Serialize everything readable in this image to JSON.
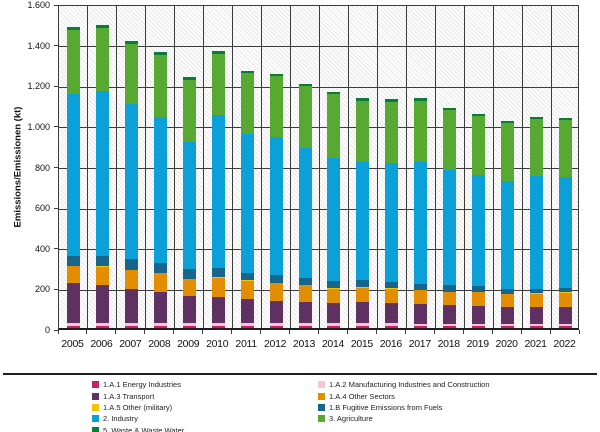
{
  "chart_data": {
    "type": "bar",
    "stacked": true,
    "title": "",
    "ylabel": "Emissions/Emissionen (kt)",
    "xlabel": "",
    "ylim": [
      0,
      1600
    ],
    "ytick_step": 200,
    "ytick_labels": [
      "0",
      "200",
      "400",
      "600",
      "800",
      "1.000",
      "1.200",
      "1.400",
      "1.600"
    ],
    "grid": "horizontal-and-vertical",
    "plot_background": "diagonal-hatch",
    "legend_position": "bottom-two-columns",
    "categories": [
      "2005",
      "2006",
      "2007",
      "2008",
      "2009",
      "2010",
      "2011",
      "2012",
      "2013",
      "2014",
      "2015",
      "2016",
      "2017",
      "2018",
      "2019",
      "2020",
      "2021",
      "2022"
    ],
    "series": [
      {
        "name": "1.A.1 Energy Industries",
        "color": "#c62168",
        "values": [
          10,
          10,
          10,
          10,
          10,
          10,
          10,
          10,
          10,
          10,
          10,
          10,
          9,
          9,
          9,
          9,
          9,
          9
        ]
      },
      {
        "name": "1.A.2 Manufacturing Industries and Construction",
        "color": "#f6c6d7",
        "values": [
          13,
          13,
          13,
          13,
          13,
          13,
          13,
          13,
          13,
          13,
          13,
          13,
          13,
          13,
          13,
          13,
          13,
          13
        ]
      },
      {
        "name": "1.A.3 Transport",
        "color": "#5f3163",
        "values": [
          199,
          189,
          170,
          153,
          137,
          128,
          120,
          112,
          107,
          100,
          104,
          100,
          96,
          92,
          88,
          80,
          80,
          82
        ]
      },
      {
        "name": "1.A.4 Other Sectors",
        "color": "#e28e00",
        "values": [
          82,
          90,
          93,
          94,
          80,
          97,
          89,
          85,
          80,
          71,
          72,
          71,
          69,
          63,
          67,
          64,
          67,
          70
        ]
      },
      {
        "name": "1.A.5 Other (military)",
        "color": "#f5c400",
        "values": [
          2,
          2,
          2,
          2,
          2,
          2,
          2,
          2,
          2,
          2,
          2,
          2,
          2,
          2,
          2,
          2,
          2,
          2
        ]
      },
      {
        "name": "1.B Fugitive Emissions from Fuels",
        "color": "#17658b",
        "values": [
          50,
          52,
          50,
          48,
          47,
          46,
          39,
          37,
          34,
          34,
          34,
          31,
          29,
          31,
          28,
          26,
          23,
          21
        ]
      },
      {
        "name": "2. Industry",
        "color": "#0ba1d8",
        "values": [
          795,
          812,
          763,
          720,
          627,
          752,
          680,
          680,
          640,
          607,
          582,
          587,
          599,
          567,
          544,
          532,
          555,
          546
        ]
      },
      {
        "name": "3. Agriculture",
        "color": "#57a932",
        "values": [
          314,
          307,
          298,
          305,
          306,
          301,
          302,
          300,
          303,
          313,
          303,
          301,
          303,
          295,
          291,
          285,
          281,
          282
        ]
      },
      {
        "name": "5. Waste & Waste Water",
        "color": "#0b7a3e",
        "values": [
          15,
          15,
          14,
          14,
          13,
          13,
          12,
          12,
          12,
          11,
          11,
          11,
          11,
          10,
          10,
          10,
          10,
          10
        ]
      }
    ],
    "totals": [
      1480,
      1490,
      1413,
      1359,
      1235,
      1362,
      1267,
      1251,
      1201,
      1161,
      1131,
      1126,
      1131,
      1082,
      1052,
      1021,
      1040,
      1035
    ],
    "legend_columns": [
      [
        0,
        2,
        4,
        6,
        8
      ],
      [
        1,
        3,
        5,
        7
      ]
    ]
  },
  "style_colors": {
    "gridline": "#3c3c3c",
    "axis_line": "#1f1f1f",
    "hatch_line": "#e8e8e8",
    "separator": "#1f1f1f",
    "label_text": "#111111"
  }
}
